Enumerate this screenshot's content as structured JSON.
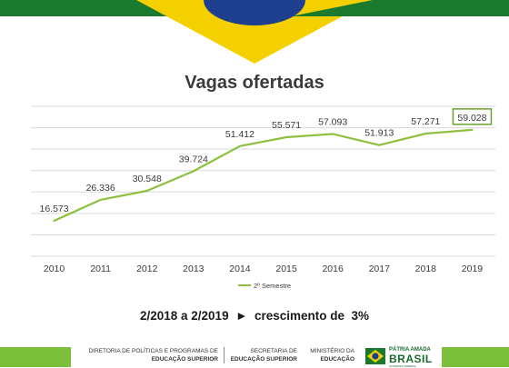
{
  "colors": {
    "line": "#8fbf3f",
    "grid": "#d9d9d9",
    "label": "#3a3a3a",
    "highlight_box": "#6aa32a",
    "green": "#1b7a2e",
    "yellow": "#f4d000",
    "blue": "#1f3f8f"
  },
  "summary": {
    "text": "2/2018 a 2/2019  ►  crescimento de  3%"
  },
  "footer": {
    "dir_line1": "DIRETORIA DE POLÍTICAS E PROGRAMAS DE",
    "dir_line2": "EDUCAÇÃO SUPERIOR",
    "sec_line1": "SECRETARIA DE",
    "sec_line2": "EDUCAÇÃO SUPERIOR",
    "min_line1": "MINISTÉRIO DA",
    "min_line2": "EDUCAÇÃO",
    "brand_top": "PÁTRIA AMADA",
    "brand_main": "BRASIL",
    "brand_sub": "GOVERNO FEDERAL"
  },
  "chart_data": {
    "type": "line",
    "title": "Vagas ofertadas",
    "categories": [
      "2010",
      "2011",
      "2012",
      "2013",
      "2014",
      "2015",
      "2016",
      "2017",
      "2018",
      "2019"
    ],
    "series": [
      {
        "name": "2º Semestre",
        "values": [
          16573,
          26336,
          30548,
          39724,
          51412,
          55571,
          57093,
          51913,
          57271,
          59028
        ],
        "labels": [
          "16.573",
          "26.336",
          "30.548",
          "39.724",
          "51.412",
          "55.571",
          "57.093",
          "51.913",
          "57.271",
          "59.028"
        ]
      }
    ],
    "highlighted_point": "2019",
    "ylim": [
      0,
      70000
    ],
    "y_tick_labels_visible": false,
    "grid": true,
    "legend_position": "bottom"
  }
}
